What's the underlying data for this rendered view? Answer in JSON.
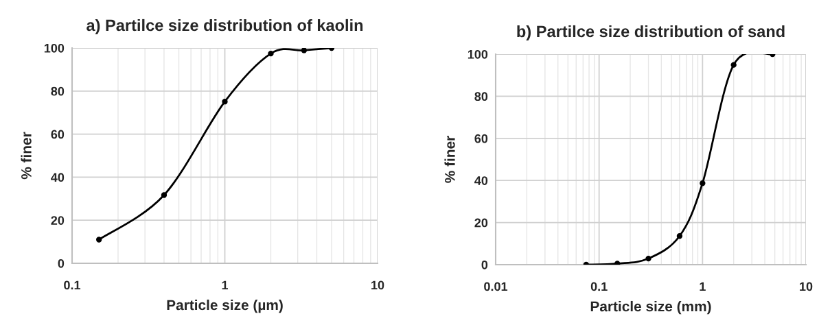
{
  "chart_data": [
    {
      "type": "line",
      "title": "a) Partilce size distribution of kaolin",
      "xlabel": "Particle size (µm)",
      "ylabel": "% finer",
      "log": "x",
      "grid": true,
      "marker": "circle",
      "line_style": "solid",
      "xlim": [
        0.1,
        10
      ],
      "xticks": [
        0.1,
        1,
        10
      ],
      "ylim": [
        0,
        100
      ],
      "yticks": [
        0,
        20,
        40,
        60,
        80,
        100
      ],
      "series": [
        {
          "color": "#000000",
          "x": [
            0.15,
            0.4,
            1,
            2,
            3.3,
            5
          ],
          "values": [
            11,
            31.7,
            75.1,
            97.4,
            98.9,
            100
          ]
        }
      ]
    },
    {
      "type": "line",
      "title": "b) Partilce size distribution of sand",
      "xlabel": "Particle size (mm)",
      "ylabel": "% finer",
      "log": "x",
      "grid": true,
      "marker": "circle",
      "line_style": "solid",
      "xlim": [
        0.01,
        10
      ],
      "xticks": [
        0.01,
        0.1,
        1,
        10
      ],
      "ylim": [
        0,
        100
      ],
      "yticks": [
        0,
        20,
        40,
        60,
        80,
        100
      ],
      "series": [
        {
          "color": "#000000",
          "x": [
            0.075,
            0.15,
            0.3,
            0.6,
            1,
            2,
            4.75
          ],
          "values": [
            0,
            0.5,
            2.9,
            13.6,
            38.7,
            94.9,
            100
          ]
        }
      ]
    }
  ]
}
